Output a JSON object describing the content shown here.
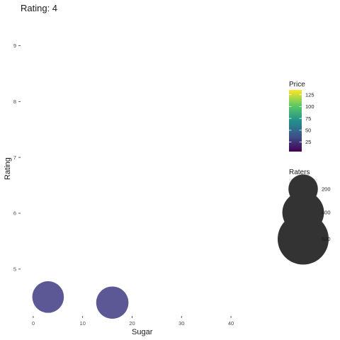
{
  "chart_data": {
    "type": "scatter",
    "title": "Rating: 4",
    "xlabel": "Sugar",
    "ylabel": "Rating",
    "xlim": [
      -2,
      42
    ],
    "ylim": [
      4.2,
      9.5
    ],
    "x_ticks": [
      0,
      10,
      20,
      30,
      40
    ],
    "y_ticks": [
      5,
      6,
      7,
      8,
      9
    ],
    "grid": false,
    "points": [
      {
        "x": 3,
        "y": 4.5,
        "price": 45,
        "raters": 230
      },
      {
        "x": 16,
        "y": 4.4,
        "price": 45,
        "raters": 240
      }
    ],
    "legend_placement": "right",
    "color_legend": {
      "title": "Price",
      "colormap": "viridis",
      "range": [
        5,
        135
      ],
      "ticks": [
        25,
        50,
        75,
        100,
        125
      ],
      "stops": [
        "#440154",
        "#3b528b",
        "#21918c",
        "#5ec962",
        "#fde725"
      ]
    },
    "size_legend": {
      "title": "Raters",
      "values": [
        200,
        400,
        600
      ]
    },
    "point_color": "#4e4a8c"
  }
}
